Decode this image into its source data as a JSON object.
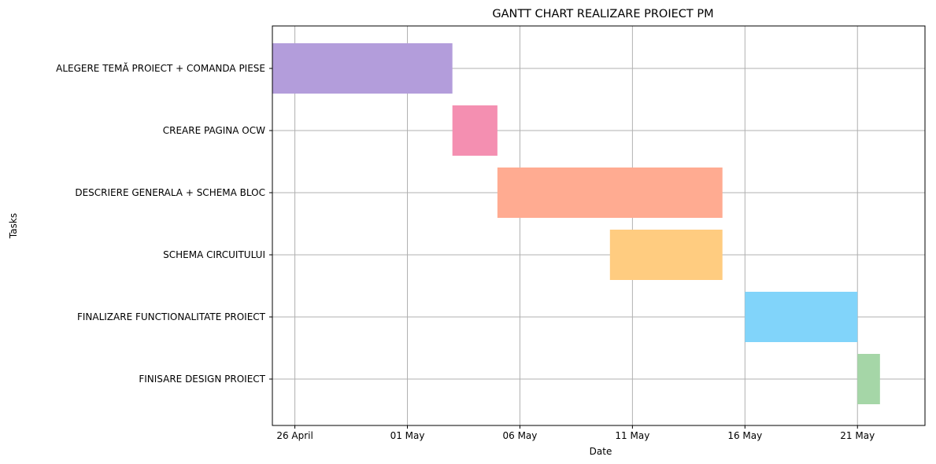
{
  "chart_data": {
    "type": "gantt",
    "title": "GANTT CHART REALIZARE PROIECT PM",
    "xlabel": "Date",
    "ylabel": "Tasks",
    "x_range": [
      "2024-04-25",
      "2024-05-24"
    ],
    "x_ticks": [
      {
        "date": "2024-04-26",
        "label": "26 April"
      },
      {
        "date": "2024-05-01",
        "label": "01 May"
      },
      {
        "date": "2024-05-06",
        "label": "06 May"
      },
      {
        "date": "2024-05-11",
        "label": "11 May"
      },
      {
        "date": "2024-05-16",
        "label": "16 May"
      },
      {
        "date": "2024-05-21",
        "label": "21 May"
      }
    ],
    "grid": true,
    "tasks": [
      {
        "name": "ALEGERE TEMĂ PROIECT + COMANDA PIESE",
        "start": "2024-04-25",
        "end": "2024-05-03",
        "color": "#b39ddb"
      },
      {
        "name": "CREARE PAGINA OCW",
        "start": "2024-05-03",
        "end": "2024-05-05",
        "color": "#f48fb1"
      },
      {
        "name": "DESCRIERE GENERALA + SCHEMA BLOC",
        "start": "2024-05-05",
        "end": "2024-05-15",
        "color": "#ffab91"
      },
      {
        "name": "SCHEMA CIRCUITULUI",
        "start": "2024-05-10",
        "end": "2024-05-15",
        "color": "#ffcc80"
      },
      {
        "name": "FINALIZARE FUNCTIONALITATE PROIECT",
        "start": "2024-05-16",
        "end": "2024-05-21",
        "color": "#81d4fa"
      },
      {
        "name": "FINISARE DESIGN PROIECT",
        "start": "2024-05-21",
        "end": "2024-05-22",
        "color": "#a5d6a7"
      }
    ]
  }
}
